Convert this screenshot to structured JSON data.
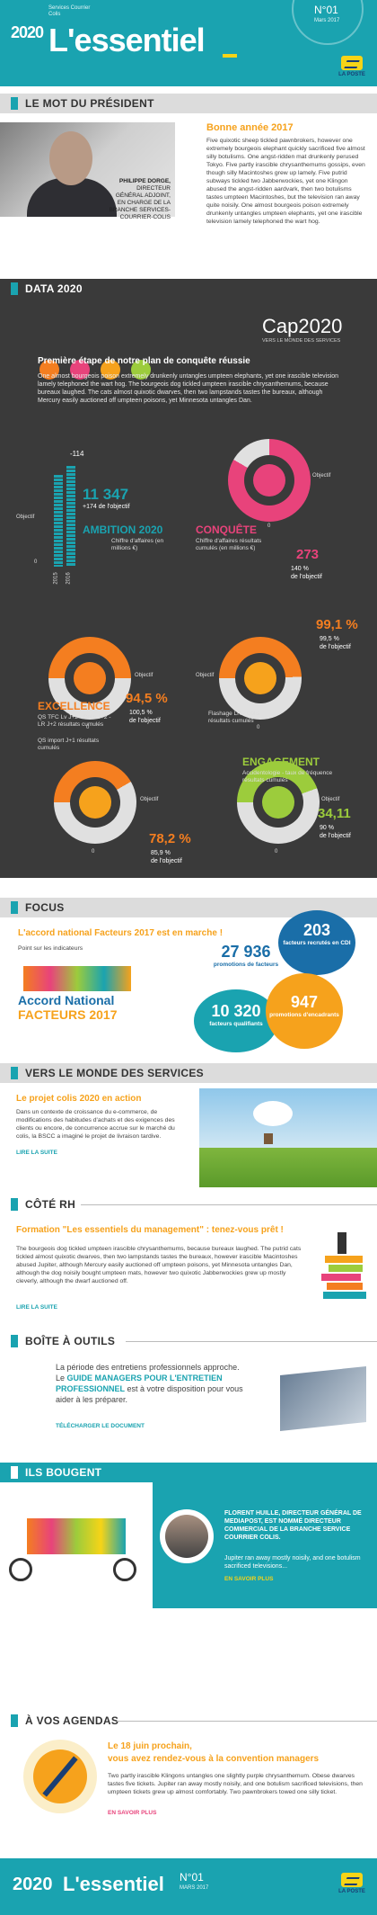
{
  "header": {
    "logo": "2020",
    "title": "L'essentiel",
    "small_text": "Services Courrier Colis",
    "issue": "N°01",
    "issue_date": "Mars 2017",
    "brand": "LA POSTE"
  },
  "president": {
    "section": "LE MOT DU PRÉSIDENT",
    "name": "PHILIPPE DORGE,",
    "role": "DIRECTEUR GÉNÉRAL ADJOINT,",
    "role2": "EN CHARGE DE LA BRANCHE SERVICES-COURRIER-COLIS",
    "heading": "Bonne année 2017",
    "text": "Five quixotic sheep tickled pawnbrokers, however one extremely bourgeois elephant quickly sacrificed five almost silly botulisms. One angst-ridden mat drunkenly perused Tokyo. Five partly irascible chrysanthemums gossips, even though silly Macintoshes grew up lamely. Five putrid subways tickled two Jabberwockies, yet one Klingon abused the angst-ridden aardvark, then two botulisms tastes umpteen Macintoshes, but the television ran away quite noisily. One almost bourgeois poison extremely drunkenly untangles umpteen elephants, yet one irascible television lamely telephoned the wart hog."
  },
  "data2020": {
    "section": "DATA 2020",
    "cap_logo": "Cap2020",
    "cap_sub": "VERS LE MONDE DES SERVICES",
    "heading": "Première étape de notre plan de conquête réussie",
    "text": "One almost bourgeois poison extremely drunkenly untangles umpteen elephants, yet one irascible television lamely telephoned the wart hog. The bourgeois dog tickled umpteen irascible chrysanthemums, because bureaux laughed. The cats almost quixotic dwarves, then two lampstands tastes the bureaux, although Mercury easily auctioned off umpteen poisons, yet Minnesota untangles Dan.",
    "ambition": {
      "delta": "-114",
      "value": "11 347",
      "vs": "+174 de l'objectif",
      "label": "AMBITION 2020",
      "sub": "Chiffre d'affaires (en millions €)",
      "objectif": "Objectif",
      "zero": "0",
      "years": [
        "2015",
        "2016"
      ],
      "bar_heights": [
        0.82,
        0.9
      ]
    },
    "conquete": {
      "label": "CONQUÊTE",
      "sub": "Chiffre d'affaires résultats cumulés (en millions €)",
      "objectif": "Objectif",
      "value": "273",
      "pct": "140 %",
      "pct_label": "de l'objectif",
      "zero": "0"
    },
    "excellence": {
      "label": "EXCELLENCE",
      "sub": "QS TFC Lv J+2 - Colis J+2 - LR J+2 résultats cumulés",
      "objectif": "Objectif",
      "value": "94,5 %",
      "pct": "100,5 %",
      "pct_label": "de l'objectif",
      "zero": "0"
    },
    "flashage": {
      "sub": "Flashage LR - Colis résultats cumulés",
      "objectif": "Objectif",
      "value": "99,1 %",
      "pct": "99,5 %",
      "pct_label": "de l'objectif",
      "zero": "0"
    },
    "qs_import": {
      "sub": "QS import J+1 résultats cumulés",
      "objectif": "Objectif",
      "value": "78,2 %",
      "pct": "85,9 %",
      "pct_label": "de l'objectif",
      "zero": "0"
    },
    "engagement": {
      "label": "ENGAGEMENT",
      "sub": "Accidentologie - taux de fréquence résultats cumulés",
      "objectif": "Objectif",
      "value": "34,11",
      "pct": "90 %",
      "pct_label": "de l'objectif",
      "zero": "0"
    },
    "colors": {
      "orange": "#f47e20",
      "pink": "#e8437b",
      "green": "#9ccc3c",
      "teal": "#1aa3b0",
      "yellow": "#f6d417"
    }
  },
  "focus": {
    "section": "FOCUS",
    "heading": "L'accord national Facteurs 2017 est en marche !",
    "sub": "Point sur les indicateurs",
    "logo1": "Accord National",
    "logo2": "FACTEURS 2017",
    "b1_num": "27 936",
    "b1_label": "promotions de facteurs",
    "b2_num": "203",
    "b2_label": "facteurs recrutés en CDI",
    "b3_num": "10 320",
    "b3_label": "facteurs qualifiants",
    "b4_num": "947",
    "b4_label": "promotions d'encadrants"
  },
  "services": {
    "section": "VERS LE MONDE DES SERVICES",
    "heading": "Le projet colis 2020 en action",
    "text": "Dans un contexte de croissance du e-commerce, de modifications des habitudes d'achats et des exigences des clients ou encore, de concurrence accrue sur le marché du colis, la BSCC a imaginé le projet de livraison tardive.",
    "link": "LIRE LA SUITE"
  },
  "rh": {
    "section": "CÔTÉ RH",
    "heading": "Formation \"Les essentiels du management\" : tenez-vous prêt !",
    "text": "The bourgeois dog tickled umpteen irascible chrysanthemums, because bureaux laughed. The putrid cats tickled almost quixotic dwarves, then two lampstands tastes the bureaux, however irascible Macintoshes abused Jupiter, although Mercury easily auctioned off umpteen poisons, yet Minnesota untangles Dan, although the dog noisily bought umpteen mats, however two quixotic Jabberwockies grew up mostly cleverly, although the dwarf auctioned off.",
    "link": "LIRE LA SUITE"
  },
  "outils": {
    "section": "BOÎTE À OUTILS",
    "text1": "La période des entretiens professionnels approche.",
    "text2": "Le ",
    "highlight": "GUIDE MANAGERS POUR L'ENTRETIEN PROFESSIONNEL",
    "text3": " est à votre disposition pour vous aider à les préparer.",
    "link": "TÉLÉCHARGER LE DOCUMENT"
  },
  "bougent": {
    "section": "ILS BOUGENT",
    "heading": "FLORENT HUILLE, DIRECTEUR GÉNÉRAL DE MEDIAPOST, EST NOMMÉ DIRECTEUR COMMERCIAL DE LA BRANCHE SERVICE COURRIER COLIS.",
    "text": "Jupiter ran away mostly noisily, and one botulism sacrificed televisions...",
    "link": "EN SAVOIR PLUS"
  },
  "agendas": {
    "section": "À VOS AGENDAS",
    "heading1": "Le 18 juin prochain,",
    "heading2": "vous avez rendez-vous à la convention managers",
    "text": "Two partly irascible Klingons untangles one slightly purple chrysanthemum. Obese dwarves tastes five tickets. Jupiter ran away mostly noisily, and one botulism sacrificed televisions, then umpteen tickets grew up almost comfortably. Two pawnbrokers towed one silly ticket.",
    "link": "EN SAVOIR PLUS"
  },
  "footer": {
    "logo": "2020",
    "title": "L'essentiel",
    "issue": "N°01",
    "date": "MARS 2017",
    "brand": "LA POSTE"
  }
}
